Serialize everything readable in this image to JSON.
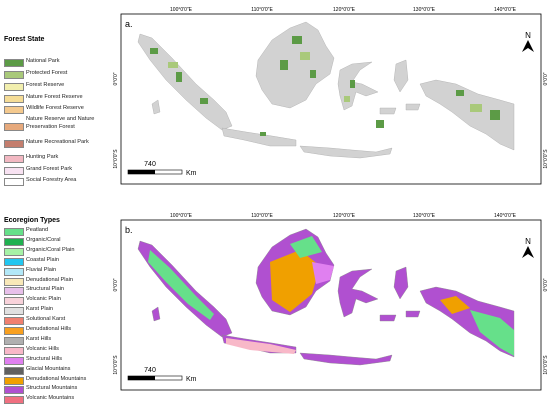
{
  "panel_a": {
    "label": "a.",
    "legend_title": "Forest State",
    "legend": [
      {
        "label": "National Park",
        "color": "#5c9b46"
      },
      {
        "label": "Protected Forest",
        "color": "#a9c97a"
      },
      {
        "label": "Forest Reserve",
        "color": "#f2efae"
      },
      {
        "label": "Nature Forest Reserve",
        "color": "#f5dc96"
      },
      {
        "label": "Wildlife Forest Reserve",
        "color": "#f4c98e"
      },
      {
        "label": "Nature Reserve and Nature Preservation Forest",
        "color": "#e6a97c"
      },
      {
        "label": "Nature Recreational Park",
        "color": "#c47e6e"
      },
      {
        "label": "Hunting Park",
        "color": "#f2b8c2"
      },
      {
        "label": "Grand Forest Park",
        "color": "#f8e2f2"
      },
      {
        "label": "Social Forestry Area",
        "color": "#ffffff"
      }
    ],
    "longitudes": [
      "100°0'0\"E",
      "110°0'0\"E",
      "120°0'0\"E",
      "130°0'0\"E",
      "140°0'0\"E"
    ],
    "latitudes": [
      "0°0'0\"",
      "10°0'0\"S"
    ],
    "scale": "740",
    "scale_unit": "Km",
    "north": "N"
  },
  "panel_b": {
    "label": "b.",
    "legend_title": "Ecoregion Types",
    "legend": [
      {
        "label": "Peatland",
        "color": "#66e08a"
      },
      {
        "label": "Organic/Coral",
        "color": "#20b050"
      },
      {
        "label": "Organic/Coral Plain",
        "color": "#a6f2a6"
      },
      {
        "label": "Coastal Plain",
        "color": "#22c6f0"
      },
      {
        "label": "Fluvial Plain",
        "color": "#b2e8f8"
      },
      {
        "label": "Denudational Plain",
        "color": "#f8e8b8"
      },
      {
        "label": "Structural Plain",
        "color": "#e8c0ea"
      },
      {
        "label": "Volcanic Plain",
        "color": "#f8d2da"
      },
      {
        "label": "Karst Plain",
        "color": "#e0e0e0"
      },
      {
        "label": "Solutional Karst",
        "color": "#f08070"
      },
      {
        "label": "Denudational Hills",
        "color": "#f8a020"
      },
      {
        "label": "Karst Hills",
        "color": "#b0b0b0"
      },
      {
        "label": "Volcanic Hills",
        "color": "#f8b8c8"
      },
      {
        "label": "Structural Hills",
        "color": "#e080f0"
      },
      {
        "label": "Glacial Mountains",
        "color": "#606060"
      },
      {
        "label": "Denudational Mountains",
        "color": "#f0a000"
      },
      {
        "label": "Structural Mountains",
        "color": "#b050d0"
      },
      {
        "label": "Volcanic Mountains",
        "color": "#f07080"
      }
    ],
    "longitudes": [
      "100°0'0\"E",
      "110°0'0\"E",
      "120°0'0\"E",
      "130°0'0\"E",
      "140°0'0\"E"
    ],
    "latitudes": [
      "0°0'0\"",
      "10°0'0\"S"
    ],
    "scale": "740",
    "scale_unit": "Km",
    "north": "N"
  }
}
